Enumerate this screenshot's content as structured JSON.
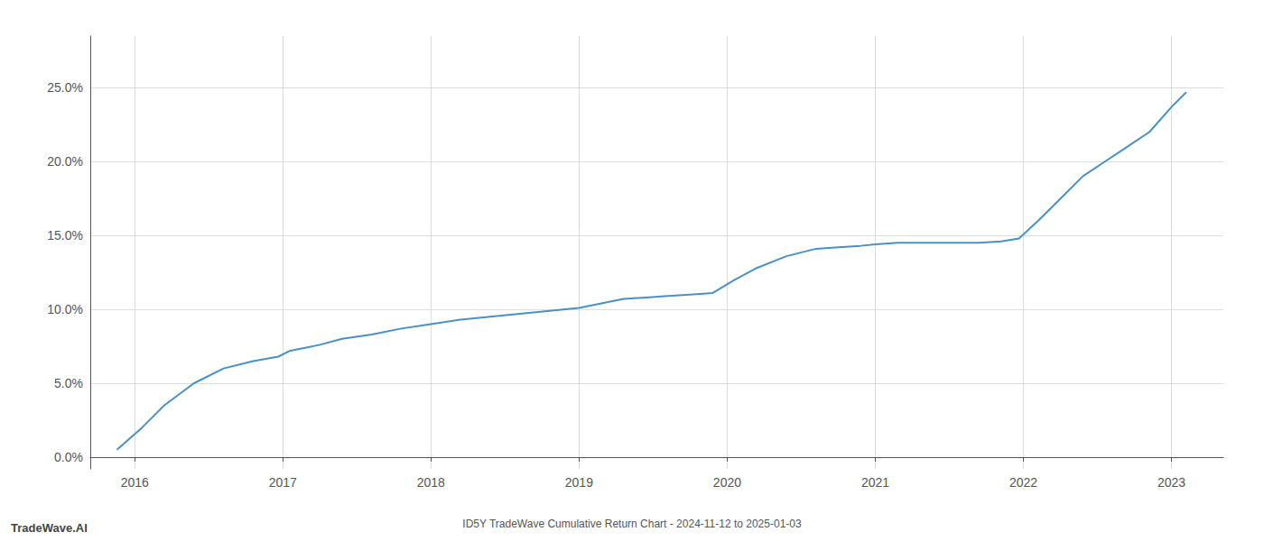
{
  "chart_data": {
    "type": "line",
    "title": "ID5Y TradeWave Cumulative Return Chart - 2024-11-12 to 2025-01-03",
    "annotations": [
      "TradeWave.AI"
    ],
    "color": "#4a90c4",
    "grid": true,
    "x": [
      2015.88,
      2016.05,
      2016.2,
      2016.4,
      2016.6,
      2016.8,
      2016.97,
      2017.05,
      2017.15,
      2017.25,
      2017.4,
      2017.6,
      2017.8,
      2018.0,
      2018.2,
      2018.4,
      2018.6,
      2018.8,
      2019.0,
      2019.15,
      2019.3,
      2019.45,
      2019.6,
      2019.75,
      2019.9,
      2020.05,
      2020.2,
      2020.4,
      2020.6,
      2020.75,
      2020.9,
      2021.0,
      2021.15,
      2021.3,
      2021.5,
      2021.7,
      2021.85,
      2021.97,
      2022.1,
      2022.25,
      2022.4,
      2022.55,
      2022.7,
      2022.85,
      2023.0,
      2023.1
    ],
    "values": [
      0.005,
      0.02,
      0.035,
      0.05,
      0.06,
      0.065,
      0.068,
      0.072,
      0.074,
      0.076,
      0.08,
      0.083,
      0.087,
      0.09,
      0.093,
      0.095,
      0.097,
      0.099,
      0.101,
      0.104,
      0.107,
      0.108,
      0.109,
      0.11,
      0.111,
      0.12,
      0.128,
      0.136,
      0.141,
      0.142,
      0.143,
      0.144,
      0.145,
      0.145,
      0.145,
      0.145,
      0.146,
      0.148,
      0.16,
      0.175,
      0.19,
      0.2,
      0.21,
      0.22,
      0.237,
      0.247
    ],
    "xlim": [
      2015.7,
      2023.35
    ],
    "xticks": [
      2016,
      2017,
      2018,
      2019,
      2020,
      2021,
      2022,
      2023
    ],
    "ylim": [
      -0.008,
      0.285
    ],
    "yticks": [
      {
        "value": 0.0,
        "label": "0.0%"
      },
      {
        "value": 0.05,
        "label": "5.0%"
      },
      {
        "value": 0.1,
        "label": "10.0%"
      },
      {
        "value": 0.15,
        "label": "15.0%"
      },
      {
        "value": 0.2,
        "label": "20.0%"
      },
      {
        "value": 0.25,
        "label": "25.0%"
      }
    ]
  }
}
